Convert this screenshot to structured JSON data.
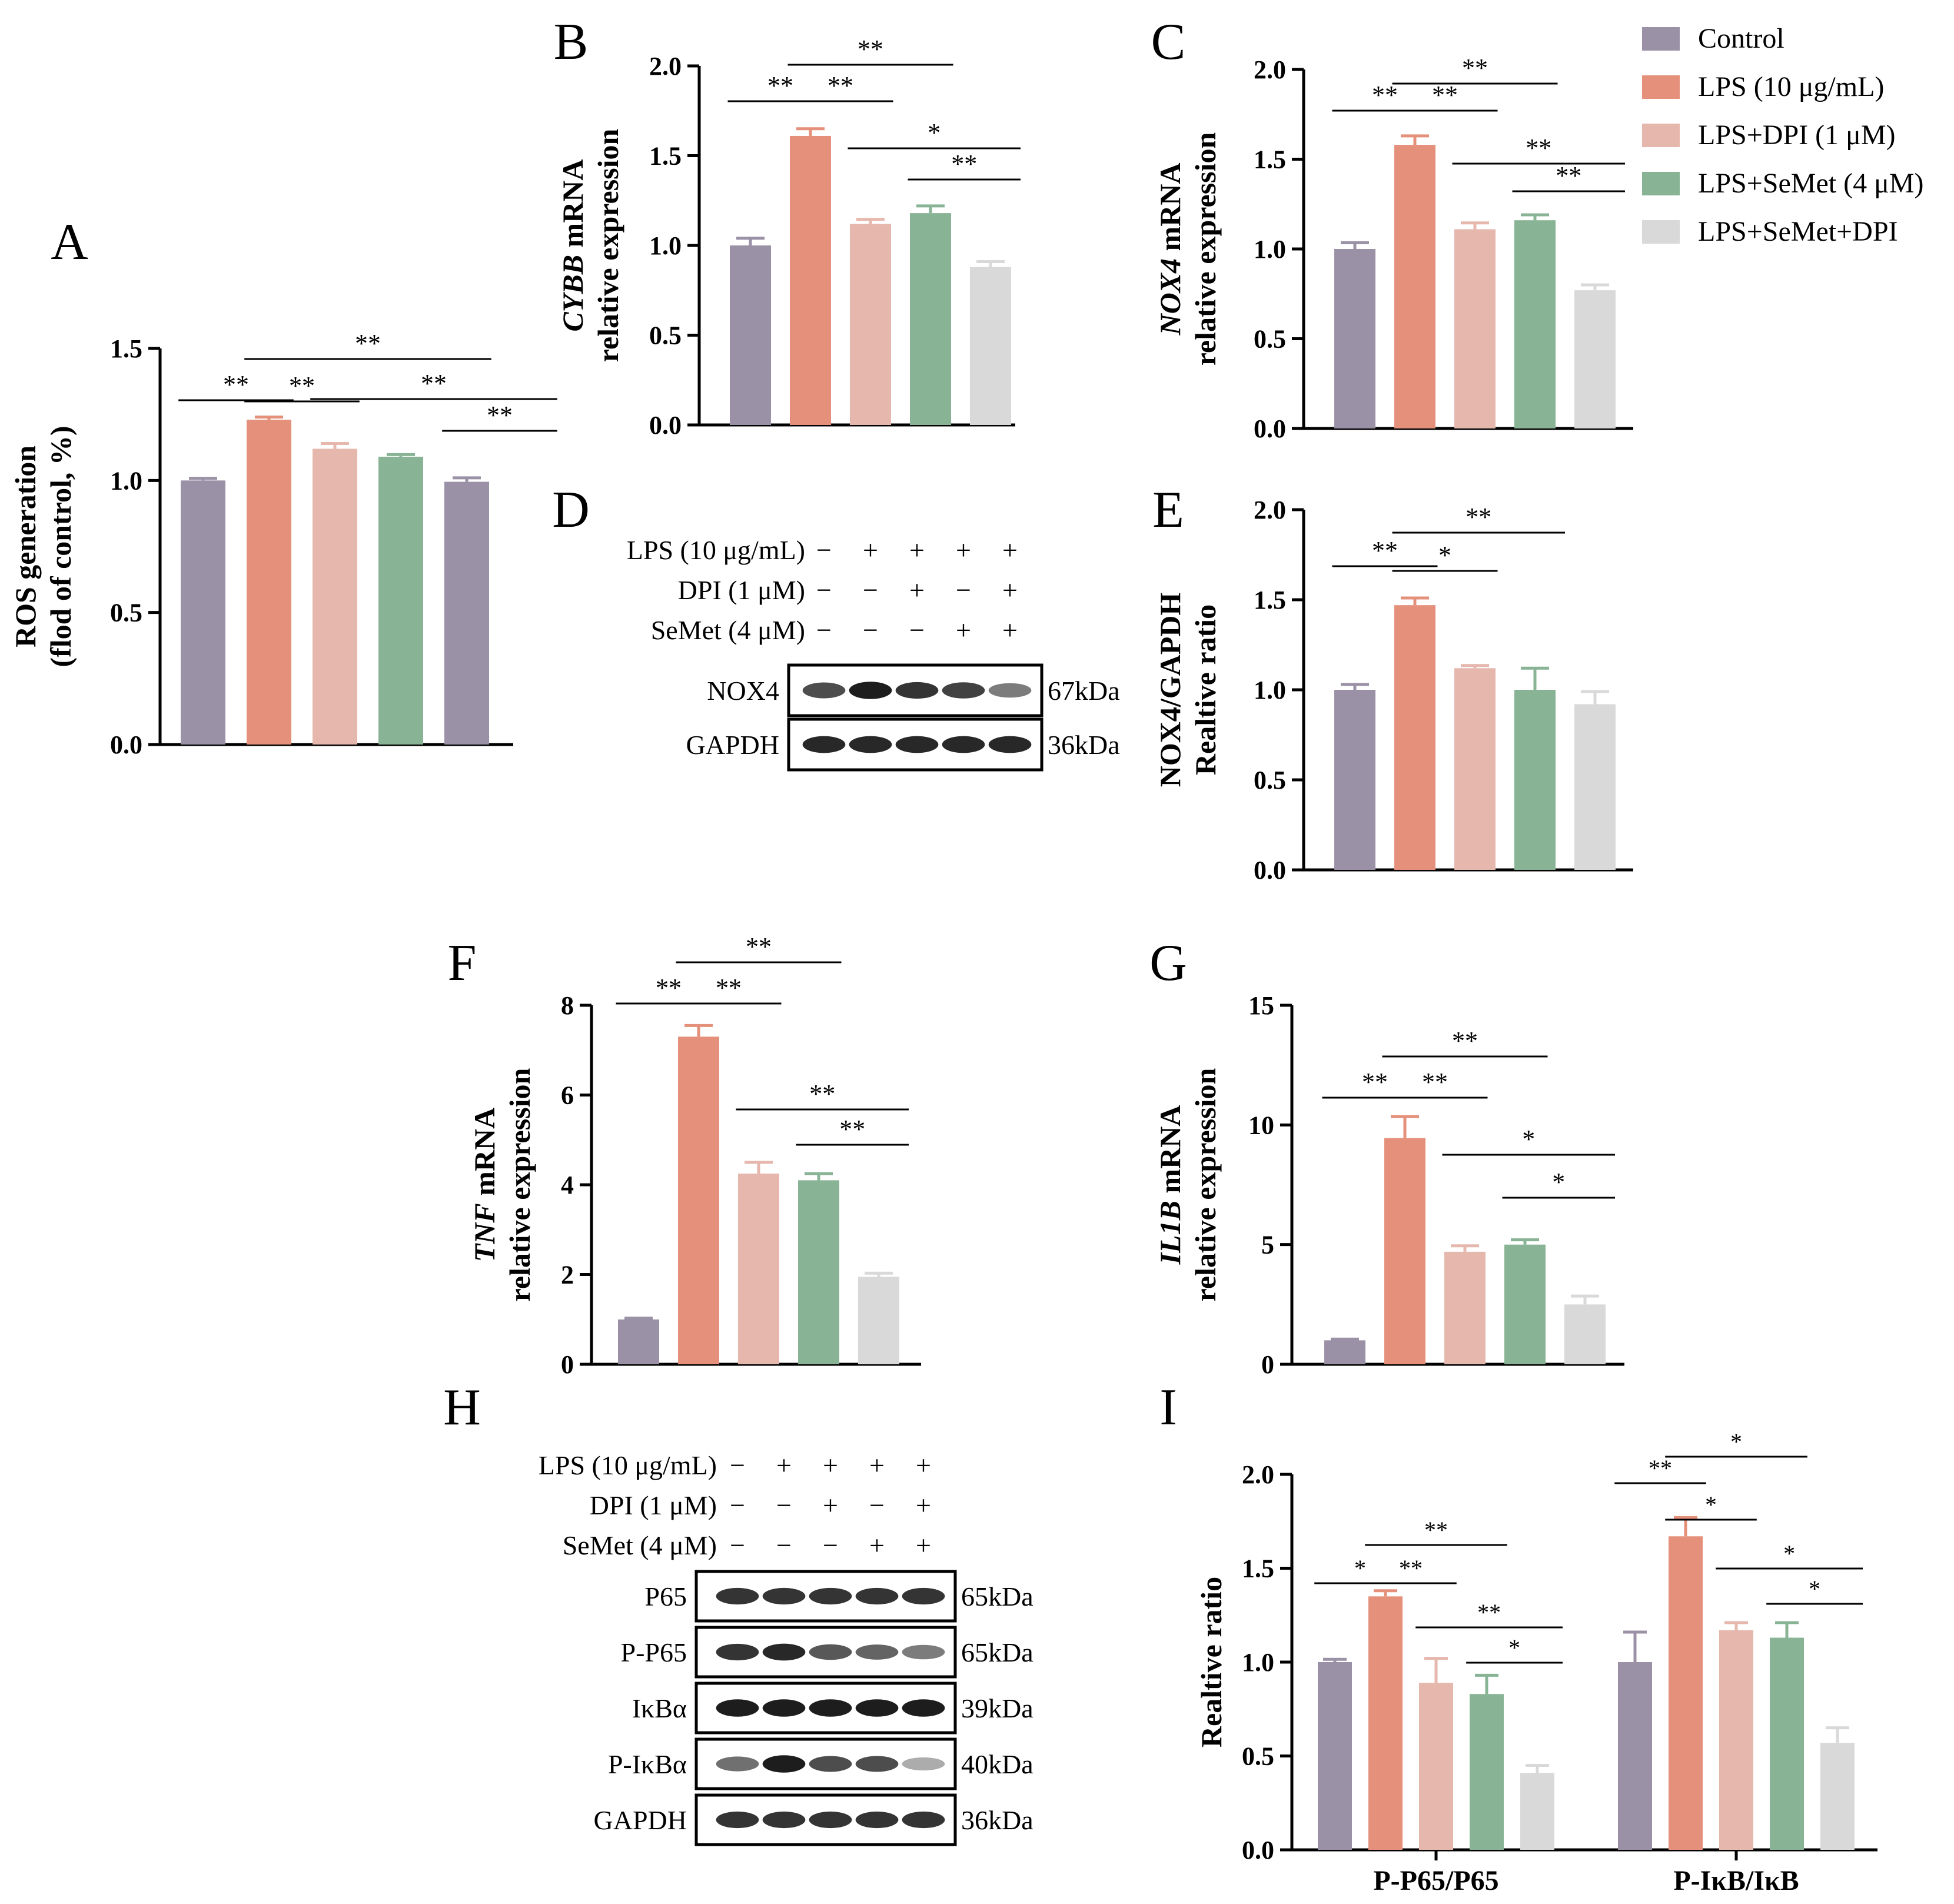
{
  "legend": {
    "entries": [
      {
        "label": "Control",
        "color": "#9b91a6"
      },
      {
        "label": "LPS (10 μg/mL)",
        "color": "#e5907a"
      },
      {
        "label": "LPS+DPI (1 μM)",
        "color": "#e6b7ad"
      },
      {
        "label": "LPS+SeMet (4 μM)",
        "color": "#88b495"
      },
      {
        "label": "LPS+SeMet+DPI",
        "color": "#d9d9d9"
      }
    ]
  },
  "panels": {
    "A": {
      "letter": "A",
      "ylabel1": "ROS generation",
      "ylabel2": "(flod of control, %)",
      "ylim": [
        0,
        1.5
      ],
      "ticks": [
        "0.0",
        "0.5",
        "1.0",
        "1.5"
      ],
      "values": [
        1.0,
        1.23,
        1.12,
        1.09,
        0.995
      ],
      "errors": [
        0.008,
        0.01,
        0.02,
        0.008,
        0.015
      ],
      "colors": [
        "#9b91a6",
        "#e5907a",
        "#e6b7ad",
        "#88b495",
        "#9b91a6"
      ],
      "sig": [
        {
          "from": 0,
          "to": 1,
          "label": "**"
        },
        {
          "from": 1,
          "to": 2,
          "label": "**"
        },
        {
          "from": 1,
          "to": 4,
          "label": "**"
        },
        {
          "from": 2,
          "to": 5,
          "label": "**"
        },
        {
          "from": 4,
          "to": 5,
          "label": "**"
        }
      ]
    },
    "B": {
      "letter": "B",
      "ylabel_gene": "CYBB",
      "ylabel_rest": " mRNA",
      "ylabel2": "relative expression",
      "ylim": [
        0,
        2.0
      ],
      "ticks": [
        "0.0",
        "0.5",
        "1.0",
        "1.5",
        "2.0"
      ],
      "values": [
        1.0,
        1.61,
        1.12,
        1.18,
        0.88
      ],
      "errors": [
        0.04,
        0.04,
        0.025,
        0.04,
        0.03
      ],
      "colors": [
        "#9b91a6",
        "#e5907a",
        "#e6b7ad",
        "#88b495",
        "#d9d9d9"
      ],
      "sig": [
        {
          "from": 0,
          "to": 1,
          "label": "**"
        },
        {
          "from": 1,
          "to": 2,
          "label": "**"
        },
        {
          "from": 1,
          "to": 3,
          "label": "**"
        },
        {
          "from": 2,
          "to": 4.5,
          "label": "*"
        },
        {
          "from": 3,
          "to": 4.5,
          "label": "**"
        }
      ]
    },
    "C": {
      "letter": "C",
      "ylabel_gene": "NOX4",
      "ylabel_rest": " mRNA",
      "ylabel2": "relative expression",
      "ylim": [
        0,
        2.0
      ],
      "ticks": [
        "0.0",
        "0.5",
        "1.0",
        "1.5",
        "2.0"
      ],
      "values": [
        1.0,
        1.58,
        1.11,
        1.16,
        0.77
      ],
      "errors": [
        0.035,
        0.05,
        0.035,
        0.03,
        0.03
      ],
      "colors": [
        "#9b91a6",
        "#e5907a",
        "#e6b7ad",
        "#88b495",
        "#d9d9d9"
      ],
      "sig": [
        {
          "from": 0,
          "to": 1,
          "label": "**"
        },
        {
          "from": 1,
          "to": 2,
          "label": "**"
        },
        {
          "from": 1,
          "to": 3,
          "label": "**"
        },
        {
          "from": 2,
          "to": 4.5,
          "label": "**"
        },
        {
          "from": 3,
          "to": 4.5,
          "label": "**"
        }
      ]
    },
    "D": {
      "letter": "D",
      "rows": [
        {
          "label": "LPS (10 μg/mL)",
          "signs": [
            "−",
            "+",
            "+",
            "+",
            "+"
          ]
        },
        {
          "label": "DPI (1 μM)",
          "signs": [
            "−",
            "−",
            "+",
            "−",
            "+"
          ]
        },
        {
          "label": "SeMet (4 μM)",
          "signs": [
            "−",
            "−",
            "−",
            "+",
            "+"
          ]
        }
      ],
      "blots": [
        {
          "name": "NOX4",
          "kda": "67kDa",
          "intensity": [
            0.75,
            0.95,
            0.85,
            0.8,
            0.55
          ]
        },
        {
          "name": "GAPDH",
          "kda": "36kDa",
          "intensity": [
            0.9,
            0.9,
            0.9,
            0.9,
            0.9
          ]
        }
      ]
    },
    "E": {
      "letter": "E",
      "ylabel1": "NOX4/GAPDH",
      "ylabel2": "Realtive ratio",
      "ylim": [
        0,
        2.0
      ],
      "ticks": [
        "0.0",
        "0.5",
        "1.0",
        "1.5",
        "2.0"
      ],
      "values": [
        1.0,
        1.47,
        1.12,
        1.0,
        0.92
      ],
      "errors": [
        0.03,
        0.04,
        0.015,
        0.12,
        0.07
      ],
      "colors": [
        "#9b91a6",
        "#e5907a",
        "#e6b7ad",
        "#88b495",
        "#d9d9d9"
      ],
      "sig": [
        {
          "from": 0,
          "to": 1,
          "label": "**"
        },
        {
          "from": 1,
          "to": 2,
          "label": "*"
        },
        {
          "from": 1,
          "to": 3.5,
          "label": "**"
        }
      ]
    },
    "F": {
      "letter": "F",
      "ylabel_gene": "TNF",
      "ylabel_rest": " mRNA",
      "ylabel2": "relative expression",
      "ylim": [
        0,
        8
      ],
      "ticks": [
        "0",
        "2",
        "4",
        "6",
        "8"
      ],
      "values": [
        1.0,
        7.3,
        4.25,
        4.1,
        1.95
      ],
      "errors": [
        0.03,
        0.25,
        0.25,
        0.15,
        0.08
      ],
      "colors": [
        "#9b91a6",
        "#e5907a",
        "#e6b7ad",
        "#88b495",
        "#d9d9d9"
      ],
      "sig": [
        {
          "from": 0,
          "to": 1,
          "label": "**"
        },
        {
          "from": 1,
          "to": 2,
          "label": "**"
        },
        {
          "from": 1,
          "to": 3,
          "label": "**"
        },
        {
          "from": 2,
          "to": 4.5,
          "label": "**"
        },
        {
          "from": 3,
          "to": 4.5,
          "label": "**"
        }
      ]
    },
    "G": {
      "letter": "G",
      "ylabel_gene": "IL1B",
      "ylabel_rest": " mRNA",
      "ylabel2": "relative expression",
      "ylim": [
        0,
        15
      ],
      "ticks": [
        "0",
        "5",
        "10",
        "15"
      ],
      "values": [
        1.0,
        9.45,
        4.7,
        5.0,
        2.5
      ],
      "errors": [
        0.05,
        0.9,
        0.25,
        0.2,
        0.35
      ],
      "colors": [
        "#9b91a6",
        "#e5907a",
        "#e6b7ad",
        "#88b495",
        "#d9d9d9"
      ],
      "sig": [
        {
          "from": 0,
          "to": 1,
          "label": "**"
        },
        {
          "from": 1,
          "to": 2,
          "label": "**"
        },
        {
          "from": 1,
          "to": 3,
          "label": "**"
        },
        {
          "from": 2,
          "to": 4.5,
          "label": "*"
        },
        {
          "from": 3,
          "to": 4.5,
          "label": "*"
        }
      ]
    },
    "H": {
      "letter": "H",
      "rows": [
        {
          "label": "LPS (10 μg/mL)",
          "signs": [
            "−",
            "+",
            "+",
            "+",
            "+"
          ]
        },
        {
          "label": "DPI (1 μM)",
          "signs": [
            "−",
            "−",
            "+",
            "−",
            "+"
          ]
        },
        {
          "label": "SeMet (4 μM)",
          "signs": [
            "−",
            "−",
            "−",
            "+",
            "+"
          ]
        }
      ],
      "blots": [
        {
          "name": "P65",
          "kda": "65kDa",
          "intensity": [
            0.85,
            0.85,
            0.85,
            0.85,
            0.85
          ]
        },
        {
          "name": "P-P65",
          "kda": "65kDa",
          "intensity": [
            0.85,
            0.9,
            0.7,
            0.65,
            0.55
          ]
        },
        {
          "name": "IκBα",
          "kda": "39kDa",
          "intensity": [
            0.95,
            0.95,
            0.95,
            0.95,
            0.95
          ]
        },
        {
          "name": "P-IκBα",
          "kda": "40kDa",
          "intensity": [
            0.6,
            0.95,
            0.75,
            0.75,
            0.35
          ]
        },
        {
          "name": "GAPDH",
          "kda": "36kDa",
          "intensity": [
            0.85,
            0.85,
            0.85,
            0.85,
            0.85
          ]
        }
      ]
    },
    "I": {
      "letter": "I",
      "ylabel1": "Realtive ratio",
      "ylim": [
        0,
        2.0
      ],
      "ticks": [
        "0.0",
        "0.5",
        "1.0",
        "1.5",
        "2.0"
      ],
      "groups": [
        {
          "label": "P-P65/P65",
          "values": [
            1.0,
            1.35,
            0.89,
            0.83,
            0.41
          ],
          "errors": [
            0.015,
            0.03,
            0.13,
            0.1,
            0.04
          ],
          "sig": [
            {
              "from": 0,
              "to": 1,
              "label": "*"
            },
            {
              "from": 1,
              "to": 2,
              "label": "**"
            },
            {
              "from": 1,
              "to": 3,
              "label": "**"
            },
            {
              "from": 2,
              "to": 4.5,
              "label": "**"
            },
            {
              "from": 3,
              "to": 4.5,
              "label": "*"
            }
          ]
        },
        {
          "label": "P-IκB/IκB",
          "values": [
            1.0,
            1.67,
            1.17,
            1.13,
            0.57
          ],
          "errors": [
            0.16,
            0.1,
            0.04,
            0.08,
            0.08
          ],
          "sig": [
            {
              "from": 0,
              "to": 1,
              "label": "**"
            },
            {
              "from": 1,
              "to": 2,
              "label": "*"
            },
            {
              "from": 1,
              "to": 3,
              "label": "*"
            },
            {
              "from": 2,
              "to": 4.5,
              "label": "*"
            },
            {
              "from": 3,
              "to": 4.5,
              "label": "*"
            }
          ]
        }
      ],
      "colors": [
        "#9b91a6",
        "#e5907a",
        "#e6b7ad",
        "#88b495",
        "#d9d9d9"
      ]
    }
  },
  "chart_data": [
    {
      "type": "bar",
      "title": "A",
      "categories": [
        "Control",
        "LPS (10 μg/mL)",
        "LPS+DPI (1 μM)",
        "LPS+SeMet (4 μM)",
        "LPS+SeMet+DPI"
      ],
      "values": [
        1.0,
        1.23,
        1.12,
        1.09,
        0.995
      ],
      "ylabel": "ROS generation (flod of control, %)",
      "ylim": [
        0,
        1.5
      ]
    },
    {
      "type": "bar",
      "title": "B",
      "categories": [
        "Control",
        "LPS (10 μg/mL)",
        "LPS+DPI (1 μM)",
        "LPS+SeMet (4 μM)",
        "LPS+SeMet+DPI"
      ],
      "values": [
        1.0,
        1.61,
        1.12,
        1.18,
        0.88
      ],
      "ylabel": "CYBB mRNA relative expression",
      "ylim": [
        0,
        2.0
      ]
    },
    {
      "type": "bar",
      "title": "C",
      "categories": [
        "Control",
        "LPS (10 μg/mL)",
        "LPS+DPI (1 μM)",
        "LPS+SeMet (4 μM)",
        "LPS+SeMet+DPI"
      ],
      "values": [
        1.0,
        1.58,
        1.11,
        1.16,
        0.77
      ],
      "ylabel": "NOX4 mRNA relative expression",
      "ylim": [
        0,
        2.0
      ]
    },
    {
      "type": "bar",
      "title": "E",
      "categories": [
        "Control",
        "LPS (10 μg/mL)",
        "LPS+DPI (1 μM)",
        "LPS+SeMet (4 μM)",
        "LPS+SeMet+DPI"
      ],
      "values": [
        1.0,
        1.47,
        1.12,
        1.0,
        0.92
      ],
      "ylabel": "NOX4/GAPDH Realtive ratio",
      "ylim": [
        0,
        2.0
      ]
    },
    {
      "type": "bar",
      "title": "F",
      "categories": [
        "Control",
        "LPS (10 μg/mL)",
        "LPS+DPI (1 μM)",
        "LPS+SeMet (4 μM)",
        "LPS+SeMet+DPI"
      ],
      "values": [
        1.0,
        7.3,
        4.25,
        4.1,
        1.95
      ],
      "ylabel": "TNF mRNA relative expression",
      "ylim": [
        0,
        8
      ]
    },
    {
      "type": "bar",
      "title": "G",
      "categories": [
        "Control",
        "LPS (10 μg/mL)",
        "LPS+DPI (1 μM)",
        "LPS+SeMet (4 μM)",
        "LPS+SeMet+DPI"
      ],
      "values": [
        1.0,
        9.45,
        4.7,
        5.0,
        2.5
      ],
      "ylabel": "IL1B mRNA relative expression",
      "ylim": [
        0,
        15
      ]
    },
    {
      "type": "bar",
      "title": "I",
      "categories": [
        "P-P65/P65",
        "P-IκB/IκB"
      ],
      "series": [
        {
          "name": "Control",
          "values": [
            1.0,
            1.0
          ]
        },
        {
          "name": "LPS (10 μg/mL)",
          "values": [
            1.35,
            1.67
          ]
        },
        {
          "name": "LPS+DPI (1 μM)",
          "values": [
            0.89,
            1.17
          ]
        },
        {
          "name": "LPS+SeMet (4 μM)",
          "values": [
            0.83,
            1.13
          ]
        },
        {
          "name": "LPS+SeMet+DPI",
          "values": [
            0.41,
            0.57
          ]
        }
      ],
      "ylabel": "Realtive ratio",
      "ylim": [
        0,
        2.0
      ]
    }
  ]
}
